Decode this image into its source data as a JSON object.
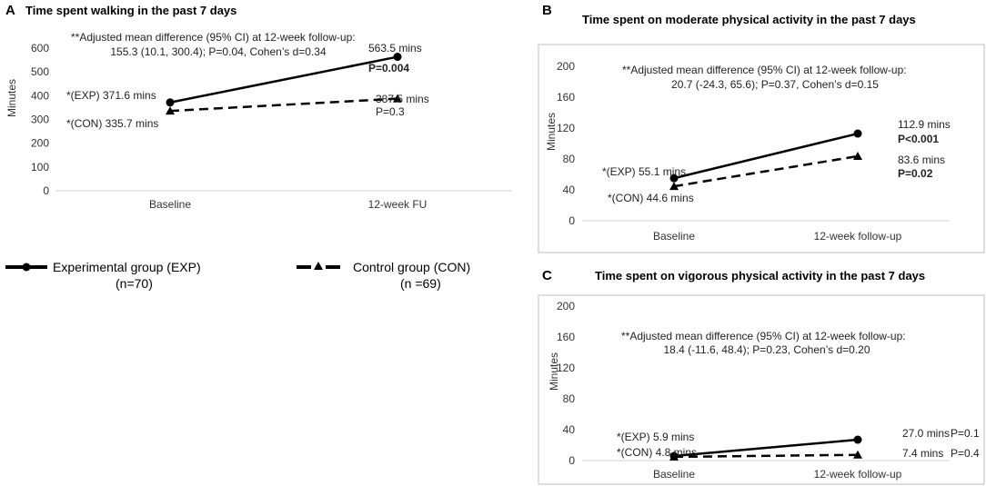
{
  "chart_data": [
    {
      "panel": "A",
      "type": "line",
      "title": "Time spent walking in the past 7 days",
      "ylabel": "Minutes",
      "xlabel": "",
      "categories": [
        "Baseline",
        "12-week FU"
      ],
      "ylim": [
        0,
        600
      ],
      "yticks": [
        0,
        100,
        200,
        300,
        400,
        500,
        600
      ],
      "series": [
        {
          "name": "Experimental group (EXP)",
          "values": [
            371.6,
            563.5
          ]
        },
        {
          "name": "Control group (CON)",
          "values": [
            335.7,
            387.5
          ]
        }
      ],
      "annotation_lines": [
        "**Adjusted mean difference (95% CI) at 12-week follow-up:",
        "155.3 (10.1, 300.4); P=0.04, Cohen’s d=0.34"
      ],
      "labels": {
        "exp_start": "*(EXP) 371.6 mins",
        "con_start": "*(CON) 335.7 mins",
        "exp_end": "563.5 mins",
        "exp_p": "P=0.004",
        "con_end": "387.5 mins",
        "con_p": "P=0.3"
      }
    },
    {
      "panel": "B",
      "type": "line",
      "title": "Time spent on moderate physical activity in the past 7 days",
      "ylabel": "Minutes",
      "xlabel": "",
      "categories": [
        "Baseline",
        "12-week follow-up"
      ],
      "ylim": [
        0,
        200
      ],
      "yticks": [
        0,
        40,
        80,
        120,
        160,
        200
      ],
      "series": [
        {
          "name": "Experimental group (EXP)",
          "values": [
            55.1,
            112.9
          ]
        },
        {
          "name": "Control group (CON)",
          "values": [
            44.6,
            83.6
          ]
        }
      ],
      "annotation_lines": [
        "**Adjusted  mean difference (95% CI) at 12-week follow-up:",
        "20.7 (-24.3, 65.6); P=0.37, Cohen’s d=0.15"
      ],
      "labels": {
        "exp_start": "*(EXP) 55.1 mins",
        "con_start": "*(CON) 44.6 mins",
        "exp_end": "112.9 mins",
        "exp_p": "P<0.001",
        "con_end": "83.6 mins",
        "con_p": "P=0.02"
      }
    },
    {
      "panel": "C",
      "type": "line",
      "title": "Time spent on vigorous physical activity in the past 7 days",
      "ylabel": "Minutes",
      "xlabel": "",
      "categories": [
        "Baseline",
        "12-week follow-up"
      ],
      "ylim": [
        0,
        200
      ],
      "yticks": [
        0,
        40,
        80,
        120,
        160,
        200
      ],
      "series": [
        {
          "name": "Experimental group (EXP)",
          "values": [
            5.9,
            27.0
          ]
        },
        {
          "name": "Control group (CON)",
          "values": [
            4.8,
            7.4
          ]
        }
      ],
      "annotation_lines": [
        "**Adjusted  mean difference (95% CI)  at 12-week follow-up:",
        "18.4 (-11.6, 48.4); P=0.23, Cohen’s d=0.20"
      ],
      "labels": {
        "exp_start": "*(EXP) 5.9 mins",
        "con_start": "*(CON) 4.8 mins",
        "exp_end": "27.0 mins",
        "exp_p": "P=0.1",
        "con_end": "7.4 mins",
        "con_p": "P=0.4"
      }
    }
  ],
  "legend": {
    "exp_label": "Experimental group (EXP)",
    "exp_n": "(n=70)",
    "con_label": "Control group (CON)",
    "con_n": "(n =69)"
  }
}
